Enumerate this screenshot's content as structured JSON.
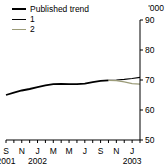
{
  "chart_data": {
    "type": "line",
    "ylabel": "'000",
    "categories": [
      "S",
      null,
      "N",
      null,
      "J",
      null,
      "M",
      null,
      "M",
      null,
      "J",
      null,
      "S",
      null,
      "N",
      null,
      "J",
      null
    ],
    "years": [
      "2001",
      null,
      null,
      null,
      "2002",
      null,
      null,
      null,
      null,
      null,
      null,
      null,
      null,
      null,
      null,
      null,
      "2003",
      null
    ],
    "series": [
      {
        "name": "Published trend",
        "color": "#000000",
        "values": [
          65,
          65.8,
          66.5,
          67,
          67.6,
          68.2,
          68.6,
          68.7,
          68.6,
          68.6,
          68.8,
          69.3,
          69.7,
          69.9,
          null,
          null,
          null,
          null
        ]
      },
      {
        "name": "1",
        "color": "#000000",
        "values": [
          null,
          null,
          null,
          null,
          null,
          null,
          null,
          null,
          null,
          null,
          null,
          null,
          null,
          69.9,
          70,
          70.2,
          70.5,
          70.9
        ]
      },
      {
        "name": "2",
        "color": "#9b9b78",
        "values": [
          null,
          null,
          null,
          null,
          null,
          null,
          null,
          null,
          null,
          null,
          null,
          null,
          null,
          69.9,
          69.8,
          69.4,
          68.8,
          68.6
        ]
      }
    ],
    "ylim": [
      50,
      90
    ],
    "yticks": [
      50,
      60,
      70,
      80,
      90
    ],
    "grid": false,
    "legend": "top-left"
  }
}
